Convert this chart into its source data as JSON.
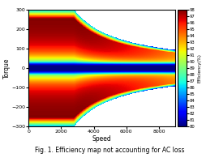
{
  "title": "Fig. 1. Efficiency map not accounting for AC loss",
  "xlabel": "Speed",
  "ylabel": "Torque",
  "colorbar_label": "Efficiency(%)",
  "speed_max": 9000,
  "torque_max": 300,
  "torque_min": -300,
  "base_speed": 2800,
  "efficiency_min": 80,
  "efficiency_max": 98,
  "colormap": "jet",
  "fig_width": 2.7,
  "fig_height": 2.0,
  "dpi": 100
}
